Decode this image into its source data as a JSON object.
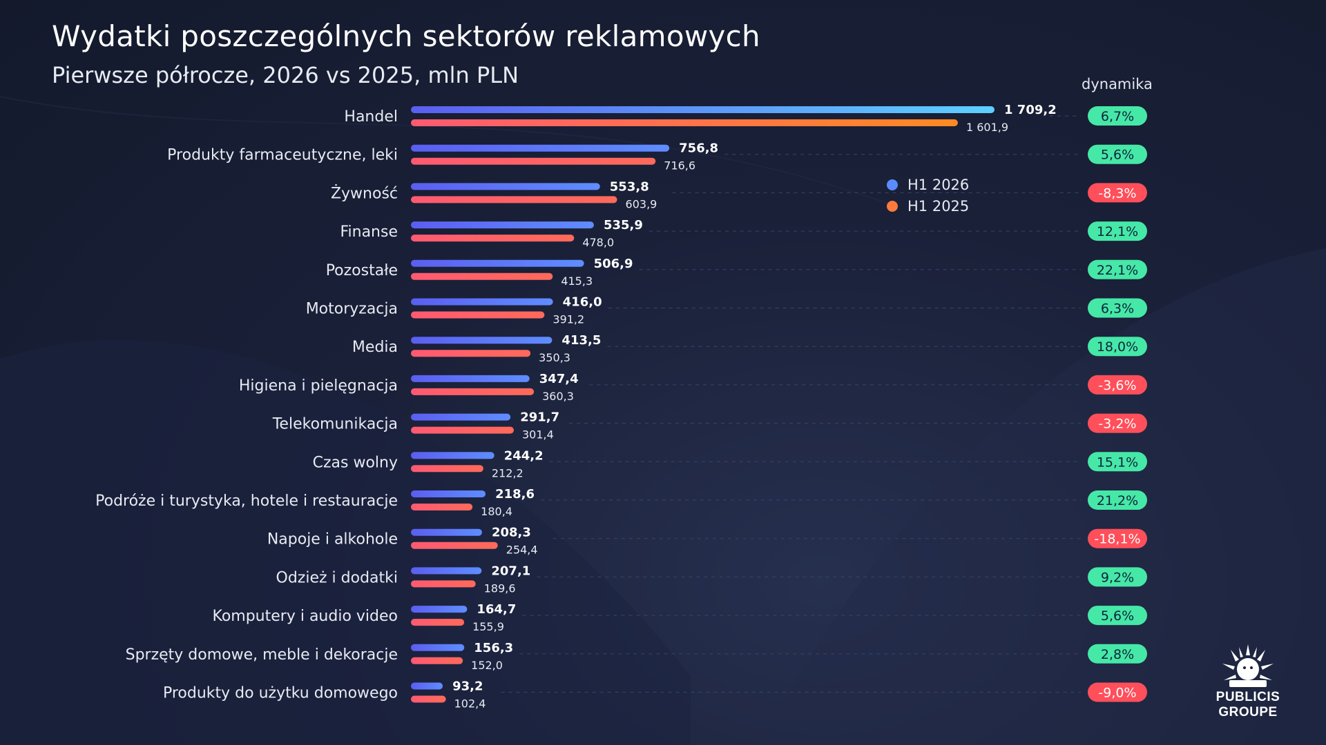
{
  "title": "Wydatki poszczególnych sektorów reklamowych",
  "subtitle": "Pierwsze półrocze, 2026 vs 2025, mln PLN",
  "dynamics_header": "dynamika",
  "legend": [
    {
      "label": "H1 2026",
      "color": "#5b8cff"
    },
    {
      "label": "H1 2025",
      "color": "#ff7a3d"
    }
  ],
  "logo": {
    "line1": "PUBLICIS",
    "line2": "GROUPE"
  },
  "colors": {
    "bar2026": "#5b6bf0",
    "bar2026_highlight": "#5ec7ff",
    "bar2025": "#ff5a6b",
    "bar2025_highlight": "#ff8a2a",
    "pill_positive": "#46e8a7",
    "pill_negative": "#ff4f5a"
  },
  "chart_data": {
    "type": "bar",
    "orientation": "horizontal",
    "categories": [
      "Handel",
      "Produkty farmaceutyczne, leki",
      "Żywność",
      "Finanse",
      "Pozostałe",
      "Motoryzacja",
      "Media",
      "Higiena i pielęgnacja",
      "Telekomunikacja",
      "Czas wolny",
      "Podróże i turystyka, hotele i restauracje",
      "Napoje i alkohole",
      "Odzież i dodatki",
      "Komputery i audio video",
      "Sprzęty domowe, meble i dekoracje",
      "Produkty do użytku domowego"
    ],
    "series": [
      {
        "name": "H1 2026",
        "values": [
          1709.2,
          756.8,
          553.8,
          535.9,
          506.9,
          416.0,
          413.5,
          347.4,
          291.7,
          244.2,
          218.6,
          208.3,
          207.1,
          164.7,
          156.3,
          93.2
        ],
        "labels": [
          "1 709,2",
          "756,8",
          "553,8",
          "535,9",
          "506,9",
          "416,0",
          "413,5",
          "347,4",
          "291,7",
          "244,2",
          "218,6",
          "208,3",
          "207,1",
          "164,7",
          "156,3",
          "93,2"
        ]
      },
      {
        "name": "H1 2025",
        "values": [
          1601.9,
          716.6,
          603.9,
          478.0,
          415.3,
          391.2,
          350.3,
          360.3,
          301.4,
          212.2,
          180.4,
          254.4,
          189.6,
          155.9,
          152.0,
          102.4
        ],
        "labels": [
          "1 601,9",
          "716,6",
          "603,9",
          "478,0",
          "415,3",
          "391,2",
          "350,3",
          "360,3",
          "301,4",
          "212,2",
          "180,4",
          "254,4",
          "189,6",
          "155,9",
          "152,0",
          "102,4"
        ]
      }
    ],
    "dynamics": [
      6.7,
      5.6,
      -8.3,
      12.1,
      22.1,
      6.3,
      18.0,
      -3.6,
      -3.2,
      15.1,
      21.2,
      -18.1,
      9.2,
      5.6,
      2.8,
      -9.0
    ],
    "dynamics_labels": [
      "6,7%",
      "5,6%",
      "-8,3%",
      "12,1%",
      "22,1%",
      "6,3%",
      "18,0%",
      "-3,6%",
      "-3,2%",
      "15,1%",
      "21,2%",
      "-18,1%",
      "9,2%",
      "5,6%",
      "2,8%",
      "-9,0%"
    ],
    "xlim": [
      0,
      1709.2
    ],
    "grid": false,
    "legend_position": "top-right"
  }
}
